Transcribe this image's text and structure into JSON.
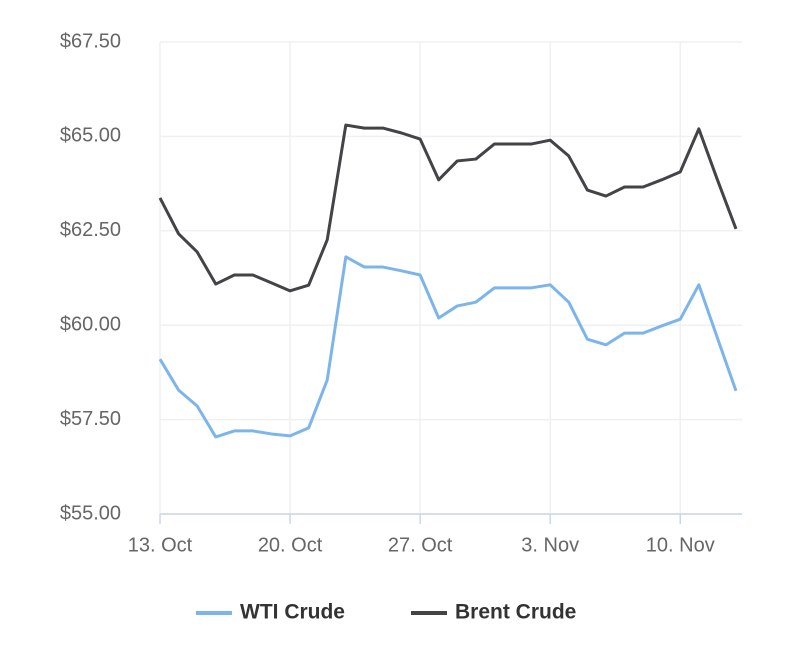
{
  "chart_data": {
    "type": "line",
    "categories": [
      "13. Oct",
      null,
      null,
      null,
      null,
      null,
      null,
      "20. Oct",
      null,
      null,
      null,
      null,
      null,
      null,
      "27. Oct",
      null,
      null,
      null,
      null,
      null,
      null,
      "3. Nov",
      null,
      null,
      null,
      null,
      null,
      null,
      "10. Nov",
      null,
      null,
      null
    ],
    "series": [
      {
        "name": "WTI Crude",
        "color": "#7cb5ec",
        "values": [
          59.1,
          58.28,
          57.86,
          57.04,
          57.2,
          57.2,
          57.12,
          57.07,
          57.28,
          58.55,
          61.81,
          61.54,
          61.54,
          61.44,
          61.33,
          60.19,
          60.51,
          60.61,
          60.99,
          60.99,
          60.99,
          61.07,
          60.61,
          59.63,
          59.48,
          59.79,
          59.79,
          59.98,
          60.16,
          61.07,
          59.66,
          58.26
        ]
      },
      {
        "name": "Brent Crude",
        "color": "#434348",
        "values": [
          63.37,
          62.42,
          61.94,
          61.09,
          61.33,
          61.33,
          61.12,
          60.91,
          61.06,
          62.26,
          65.3,
          65.22,
          65.22,
          65.09,
          64.93,
          63.85,
          64.35,
          64.4,
          64.8,
          64.8,
          64.8,
          64.9,
          64.48,
          63.58,
          63.42,
          63.66,
          63.66,
          63.85,
          64.06,
          65.2,
          63.85,
          62.55
        ]
      }
    ],
    "ylim": [
      55,
      67.5
    ],
    "yticks": [
      {
        "value": 55,
        "label": "$55.00"
      },
      {
        "value": 57.5,
        "label": "$57.50"
      },
      {
        "value": 60,
        "label": "$60.00"
      },
      {
        "value": 62.5,
        "label": "$62.50"
      },
      {
        "value": 65,
        "label": "$65.00"
      },
      {
        "value": 67.5,
        "label": "$67.50"
      }
    ],
    "grid": true,
    "legend": "bottom"
  }
}
